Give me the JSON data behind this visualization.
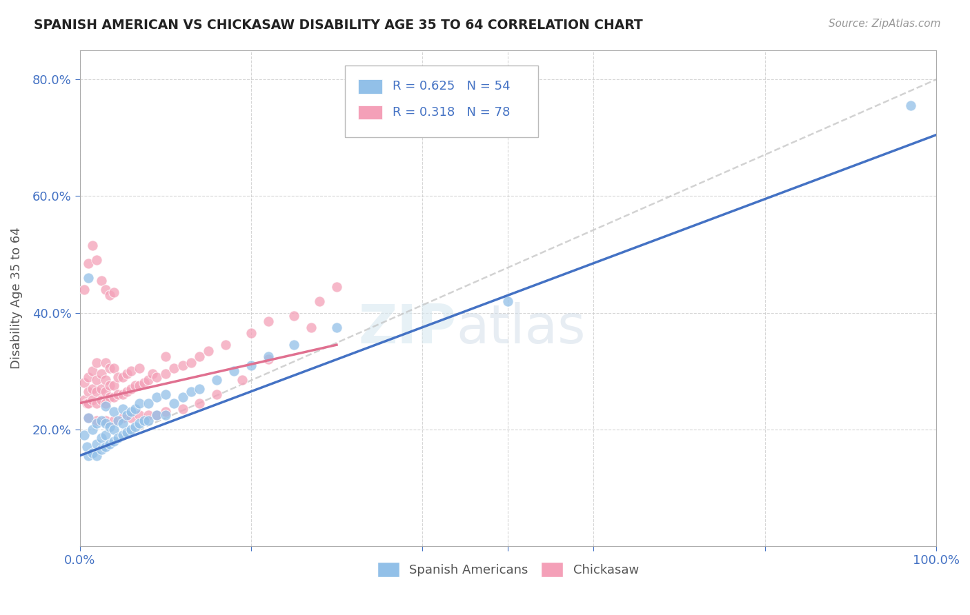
{
  "title": "SPANISH AMERICAN VS CHICKASAW DISABILITY AGE 35 TO 64 CORRELATION CHART",
  "source": "Source: ZipAtlas.com",
  "ylabel": "Disability Age 35 to 64",
  "watermark_zip": "ZIP",
  "watermark_atlas": "atlas",
  "blue_color": "#92C0E8",
  "pink_color": "#F4A0B8",
  "line_blue": "#4472C4",
  "line_pink": "#E07090",
  "line_gray": "#C0C0C0",
  "tick_color": "#4472C4",
  "background_color": "#ffffff",
  "grid_color": "#cccccc",
  "xlim": [
    0.0,
    1.0
  ],
  "ylim": [
    0.0,
    0.85
  ],
  "blue_R": 0.625,
  "blue_N": 54,
  "pink_R": 0.318,
  "pink_N": 78,
  "blue_line_x0": 0.0,
  "blue_line_y0": 0.155,
  "blue_line_x1": 1.0,
  "blue_line_y1": 0.705,
  "pink_line_x0": 0.0,
  "pink_line_y0": 0.245,
  "pink_line_x1": 0.3,
  "pink_line_y1": 0.345,
  "gray_line_x0": 0.0,
  "gray_line_y0": 0.155,
  "gray_line_x1": 1.0,
  "gray_line_y1": 0.8,
  "blue_scatter_x": [
    0.005,
    0.008,
    0.01,
    0.01,
    0.015,
    0.015,
    0.02,
    0.02,
    0.02,
    0.025,
    0.025,
    0.025,
    0.03,
    0.03,
    0.03,
    0.03,
    0.035,
    0.035,
    0.04,
    0.04,
    0.04,
    0.045,
    0.045,
    0.05,
    0.05,
    0.05,
    0.055,
    0.055,
    0.06,
    0.06,
    0.065,
    0.065,
    0.07,
    0.07,
    0.075,
    0.08,
    0.08,
    0.09,
    0.09,
    0.1,
    0.1,
    0.11,
    0.12,
    0.13,
    0.14,
    0.16,
    0.18,
    0.2,
    0.22,
    0.25,
    0.3,
    0.5,
    0.97,
    0.01
  ],
  "blue_scatter_y": [
    0.19,
    0.17,
    0.155,
    0.22,
    0.16,
    0.2,
    0.155,
    0.175,
    0.21,
    0.165,
    0.185,
    0.215,
    0.17,
    0.19,
    0.21,
    0.24,
    0.175,
    0.205,
    0.18,
    0.2,
    0.23,
    0.185,
    0.215,
    0.19,
    0.21,
    0.235,
    0.195,
    0.225,
    0.2,
    0.23,
    0.205,
    0.235,
    0.21,
    0.245,
    0.215,
    0.215,
    0.245,
    0.225,
    0.255,
    0.225,
    0.26,
    0.245,
    0.255,
    0.265,
    0.27,
    0.285,
    0.3,
    0.31,
    0.325,
    0.345,
    0.375,
    0.42,
    0.755,
    0.46
  ],
  "pink_scatter_x": [
    0.005,
    0.005,
    0.008,
    0.01,
    0.01,
    0.01,
    0.015,
    0.015,
    0.015,
    0.02,
    0.02,
    0.02,
    0.02,
    0.025,
    0.025,
    0.025,
    0.03,
    0.03,
    0.03,
    0.03,
    0.035,
    0.035,
    0.035,
    0.04,
    0.04,
    0.04,
    0.045,
    0.045,
    0.05,
    0.05,
    0.055,
    0.055,
    0.06,
    0.06,
    0.065,
    0.07,
    0.07,
    0.075,
    0.08,
    0.085,
    0.09,
    0.1,
    0.1,
    0.11,
    0.12,
    0.13,
    0.14,
    0.15,
    0.17,
    0.2,
    0.22,
    0.25,
    0.28,
    0.3,
    0.01,
    0.02,
    0.03,
    0.04,
    0.05,
    0.06,
    0.07,
    0.08,
    0.09,
    0.1,
    0.12,
    0.14,
    0.16,
    0.19,
    0.22,
    0.27,
    0.005,
    0.01,
    0.015,
    0.02,
    0.025,
    0.03,
    0.035,
    0.04
  ],
  "pink_scatter_y": [
    0.25,
    0.28,
    0.245,
    0.245,
    0.265,
    0.29,
    0.25,
    0.27,
    0.3,
    0.245,
    0.265,
    0.285,
    0.315,
    0.25,
    0.27,
    0.295,
    0.245,
    0.265,
    0.285,
    0.315,
    0.255,
    0.275,
    0.305,
    0.255,
    0.275,
    0.305,
    0.26,
    0.29,
    0.26,
    0.29,
    0.265,
    0.295,
    0.27,
    0.3,
    0.275,
    0.275,
    0.305,
    0.28,
    0.285,
    0.295,
    0.29,
    0.295,
    0.325,
    0.305,
    0.31,
    0.315,
    0.325,
    0.335,
    0.345,
    0.365,
    0.385,
    0.395,
    0.42,
    0.445,
    0.22,
    0.215,
    0.215,
    0.215,
    0.22,
    0.22,
    0.225,
    0.225,
    0.225,
    0.23,
    0.235,
    0.245,
    0.26,
    0.285,
    0.32,
    0.375,
    0.44,
    0.485,
    0.515,
    0.49,
    0.455,
    0.44,
    0.43,
    0.435
  ]
}
